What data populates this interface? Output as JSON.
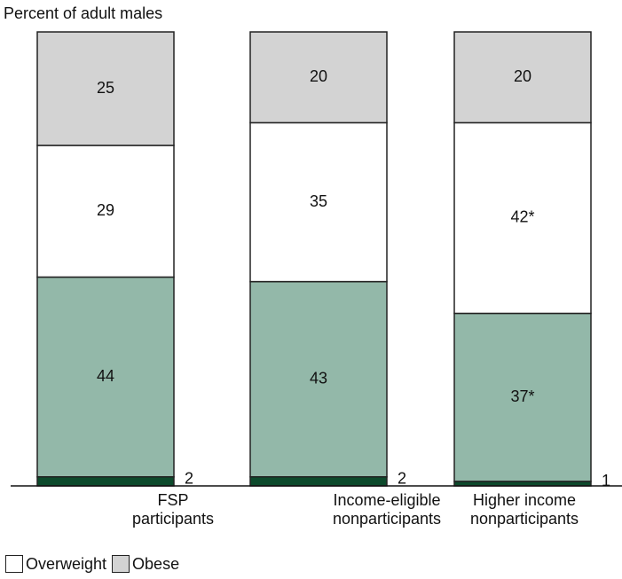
{
  "chart_data": {
    "type": "bar",
    "stacked": true,
    "ylabel": "Percent of adult males",
    "ylim": [
      0,
      100
    ],
    "categories": [
      [
        "FSP",
        "participants"
      ],
      [
        "Income-eligible",
        "nonparticipants"
      ],
      [
        "Higher income",
        "nonparticipants"
      ]
    ],
    "series": [
      {
        "name": "",
        "values": [
          2,
          2,
          1
        ],
        "labels": [
          "2",
          "2",
          "1"
        ],
        "color": "#0d4a2c",
        "label_position": "outside-right"
      },
      {
        "name": "",
        "values": [
          44,
          43,
          37
        ],
        "labels": [
          "44",
          "43",
          "37*"
        ],
        "color": "#93b8a9"
      },
      {
        "name": "Overweight",
        "values": [
          29,
          35,
          42
        ],
        "labels": [
          "29",
          "35",
          "42*"
        ],
        "color": "#ffffff"
      },
      {
        "name": "Obese",
        "values": [
          25,
          20,
          20
        ],
        "labels": [
          "25",
          "20",
          "20"
        ],
        "color": "#d3d3d3"
      }
    ],
    "legend": {
      "position": "bottom-left",
      "items": [
        {
          "label": "Overweight",
          "color": "#ffffff"
        },
        {
          "label": "Obese",
          "color": "#d3d3d3"
        }
      ]
    },
    "grid": false
  }
}
